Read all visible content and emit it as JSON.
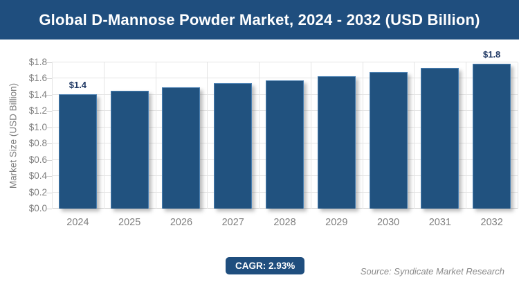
{
  "header": {
    "title": "Global D-Mannose Powder Market, 2024 - 2032 (USD Billion)"
  },
  "chart_data": {
    "type": "bar",
    "title": "Global D-Mannose Powder Market, 2024 - 2032 (USD Billion)",
    "categories": [
      "2024",
      "2025",
      "2026",
      "2027",
      "2028",
      "2029",
      "2030",
      "2031",
      "2032"
    ],
    "values": [
      1.41,
      1.45,
      1.49,
      1.54,
      1.58,
      1.63,
      1.68,
      1.73,
      1.78
    ],
    "bar_labels": [
      "$1.4",
      "",
      "",
      "",
      "",
      "",
      "",
      "",
      "$1.8"
    ],
    "ylabel": "Market Size (USD Billion)",
    "xlabel": "",
    "ylim": [
      0,
      1.8
    ],
    "ytick_labels": [
      "$0.0",
      "$0.2",
      "$0.4",
      "$0.6",
      "$0.8",
      "$1.0",
      "$1.2",
      "$1.4",
      "$1.6",
      "$1.8"
    ],
    "grid": true,
    "legend_position": "none"
  },
  "footer": {
    "cagr_label": "CAGR: 2.93%",
    "source": "Source: Syndicate Market Research"
  },
  "colors": {
    "header_bg": "#1f4e7e",
    "bar_fill": "#21527f",
    "bar_border": "#4a80b2",
    "badge_bg": "#1f4e7e",
    "data_label": "#1f3864",
    "axis_text": "#7f7f7f",
    "gridline": "#e4e4e4",
    "source_text": "#8a8a8a"
  }
}
